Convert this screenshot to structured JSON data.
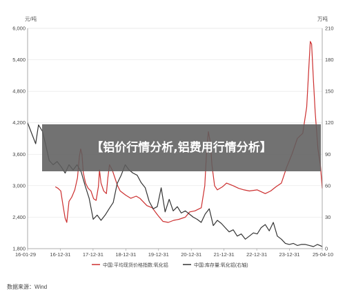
{
  "banner": {
    "title": "【铝价行情分析,铝费用行情分析】"
  },
  "source": "数据来源：Wind",
  "chart_data": {
    "type": "line",
    "left_unit": "元/吨",
    "right_unit": "万吨",
    "x_ticks": [
      "16-01-29",
      "16-12-31",
      "17-12-31",
      "18-12-31",
      "19-12-31",
      "20-12-31",
      "21-12-31",
      "22-12-31",
      "23-12-31",
      "25-04-10"
    ],
    "y_left": {
      "min": 1800,
      "max": 6000,
      "ticks": [
        "1,800",
        "2,400",
        "3,000",
        "3,600",
        "4,200",
        "4,800",
        "5,400",
        "6,000"
      ]
    },
    "y_right": {
      "min": 0,
      "max": 210,
      "ticks": [
        "0",
        "30",
        "60",
        "90",
        "120",
        "150",
        "180",
        "210"
      ]
    },
    "series": [
      {
        "name": "中国:平均现货价格指数:氧化铝",
        "axis": "left",
        "color": "#cc2e2e",
        "points": [
          [
            "2016-12-10",
            2980
          ],
          [
            "2017-01-10",
            2950
          ],
          [
            "2017-02-10",
            2900
          ],
          [
            "2017-03-05",
            2650
          ],
          [
            "2017-04-01",
            2380
          ],
          [
            "2017-04-20",
            2300
          ],
          [
            "2017-05-15",
            2700
          ],
          [
            "2017-06-15",
            2780
          ],
          [
            "2017-07-20",
            2920
          ],
          [
            "2017-08-20",
            3150
          ],
          [
            "2017-09-10",
            3550
          ],
          [
            "2017-09-25",
            3700
          ],
          [
            "2017-10-10",
            3600
          ],
          [
            "2017-10-25",
            3250
          ],
          [
            "2017-11-20",
            3050
          ],
          [
            "2017-12-20",
            2950
          ],
          [
            "2018-01-20",
            2900
          ],
          [
            "2018-02-20",
            2750
          ],
          [
            "2018-03-20",
            2720
          ],
          [
            "2018-04-15",
            2980
          ],
          [
            "2018-04-28",
            3300
          ],
          [
            "2018-05-15",
            3050
          ],
          [
            "2018-06-15",
            2900
          ],
          [
            "2018-07-15",
            2850
          ],
          [
            "2018-08-01",
            3150
          ],
          [
            "2018-08-20",
            3400
          ],
          [
            "2018-09-20",
            3300
          ],
          [
            "2018-10-20",
            3150
          ],
          [
            "2018-11-20",
            3000
          ],
          [
            "2018-12-20",
            2900
          ],
          [
            "2019-02-20",
            2820
          ],
          [
            "2019-04-20",
            2760
          ],
          [
            "2019-06-20",
            2800
          ],
          [
            "2019-08-01",
            2760
          ],
          [
            "2019-10-20",
            2620
          ],
          [
            "2019-12-20",
            2580
          ],
          [
            "2020-02-20",
            2440
          ],
          [
            "2020-04-20",
            2320
          ],
          [
            "2020-06-20",
            2300
          ],
          [
            "2020-08-20",
            2340
          ],
          [
            "2020-10-20",
            2360
          ],
          [
            "2020-12-31",
            2400
          ],
          [
            "2021-02-20",
            2500
          ],
          [
            "2021-04-20",
            2520
          ],
          [
            "2021-07-01",
            2580
          ],
          [
            "2021-08-10",
            3000
          ],
          [
            "2021-09-01",
            3700
          ],
          [
            "2021-09-20",
            4030
          ],
          [
            "2021-10-15",
            3800
          ],
          [
            "2021-10-30",
            3400
          ],
          [
            "2021-11-30",
            3000
          ],
          [
            "2021-12-31",
            2920
          ],
          [
            "2022-02-28",
            2980
          ],
          [
            "2022-04-15",
            3050
          ],
          [
            "2022-06-30",
            3000
          ],
          [
            "2022-08-31",
            2950
          ],
          [
            "2022-10-31",
            2920
          ],
          [
            "2022-12-31",
            2900
          ],
          [
            "2023-03-31",
            2920
          ],
          [
            "2023-06-30",
            2850
          ],
          [
            "2023-08-31",
            2900
          ],
          [
            "2023-10-31",
            2980
          ],
          [
            "2023-12-31",
            3050
          ],
          [
            "2024-02-29",
            3350
          ],
          [
            "2024-04-30",
            3600
          ],
          [
            "2024-06-30",
            3900
          ],
          [
            "2024-08-31",
            4000
          ],
          [
            "2024-10-15",
            4500
          ],
          [
            "2024-11-10",
            5300
          ],
          [
            "2024-11-25",
            5750
          ],
          [
            "2024-12-10",
            5700
          ],
          [
            "2024-12-31",
            5000
          ],
          [
            "2025-01-20",
            4400
          ],
          [
            "2025-02-20",
            3700
          ],
          [
            "2025-03-20",
            3400
          ],
          [
            "2025-04-10",
            2950
          ]
        ]
      },
      {
        "name": "中国:库存量:氧化铝(右轴)",
        "axis": "right",
        "color": "#333333",
        "points": [
          [
            "2016-01-29",
            120
          ],
          [
            "2016-03-15",
            110
          ],
          [
            "2016-04-30",
            100
          ],
          [
            "2016-06-01",
            118
          ],
          [
            "2016-07-15",
            112
          ],
          [
            "2016-08-20",
            100
          ],
          [
            "2016-10-01",
            84
          ],
          [
            "2016-11-15",
            80
          ],
          [
            "2016-12-31",
            83
          ],
          [
            "2017-02-15",
            78
          ],
          [
            "2017-04-01",
            72
          ],
          [
            "2017-05-15",
            80
          ],
          [
            "2017-07-01",
            75
          ],
          [
            "2017-08-15",
            80
          ],
          [
            "2017-10-01",
            73
          ],
          [
            "2017-11-15",
            60
          ],
          [
            "2017-12-31",
            48
          ],
          [
            "2018-02-15",
            28
          ],
          [
            "2018-04-01",
            32
          ],
          [
            "2018-05-15",
            27
          ],
          [
            "2018-07-01",
            32
          ],
          [
            "2018-08-15",
            38
          ],
          [
            "2018-10-01",
            44
          ],
          [
            "2018-11-15",
            62
          ],
          [
            "2018-12-31",
            70
          ],
          [
            "2019-02-15",
            80
          ],
          [
            "2019-03-31",
            75
          ],
          [
            "2019-05-15",
            72
          ],
          [
            "2019-07-01",
            70
          ],
          [
            "2019-08-15",
            63
          ],
          [
            "2019-10-01",
            58
          ],
          [
            "2019-11-15",
            45
          ],
          [
            "2019-12-31",
            38
          ],
          [
            "2020-02-15",
            40
          ],
          [
            "2020-03-31",
            58
          ],
          [
            "2020-05-15",
            35
          ],
          [
            "2020-06-30",
            47
          ],
          [
            "2020-08-15",
            36
          ],
          [
            "2020-10-01",
            40
          ],
          [
            "2020-11-15",
            34
          ],
          [
            "2020-12-31",
            36
          ],
          [
            "2021-02-15",
            33
          ],
          [
            "2021-03-31",
            30
          ],
          [
            "2021-05-15",
            28
          ],
          [
            "2021-06-30",
            25
          ],
          [
            "2021-08-15",
            33
          ],
          [
            "2021-09-30",
            38
          ],
          [
            "2021-11-15",
            22
          ],
          [
            "2021-12-31",
            27
          ],
          [
            "2022-02-15",
            24
          ],
          [
            "2022-03-31",
            20
          ],
          [
            "2022-05-15",
            16
          ],
          [
            "2022-06-30",
            18
          ],
          [
            "2022-08-15",
            12
          ],
          [
            "2022-09-30",
            14
          ],
          [
            "2022-11-15",
            9
          ],
          [
            "2022-12-31",
            12
          ],
          [
            "2023-02-15",
            15
          ],
          [
            "2023-03-31",
            14
          ],
          [
            "2023-05-15",
            20
          ],
          [
            "2023-06-30",
            23
          ],
          [
            "2023-08-15",
            17
          ],
          [
            "2023-09-30",
            25
          ],
          [
            "2023-11-15",
            12
          ],
          [
            "2023-12-31",
            9
          ],
          [
            "2024-02-15",
            5
          ],
          [
            "2024-03-31",
            4
          ],
          [
            "2024-05-15",
            5
          ],
          [
            "2024-06-30",
            3
          ],
          [
            "2024-08-15",
            4
          ],
          [
            "2024-09-30",
            4
          ],
          [
            "2024-11-15",
            3
          ],
          [
            "2024-12-31",
            2
          ],
          [
            "2025-02-15",
            4
          ],
          [
            "2025-03-15",
            3
          ],
          [
            "2025-04-10",
            2
          ]
        ]
      }
    ]
  }
}
